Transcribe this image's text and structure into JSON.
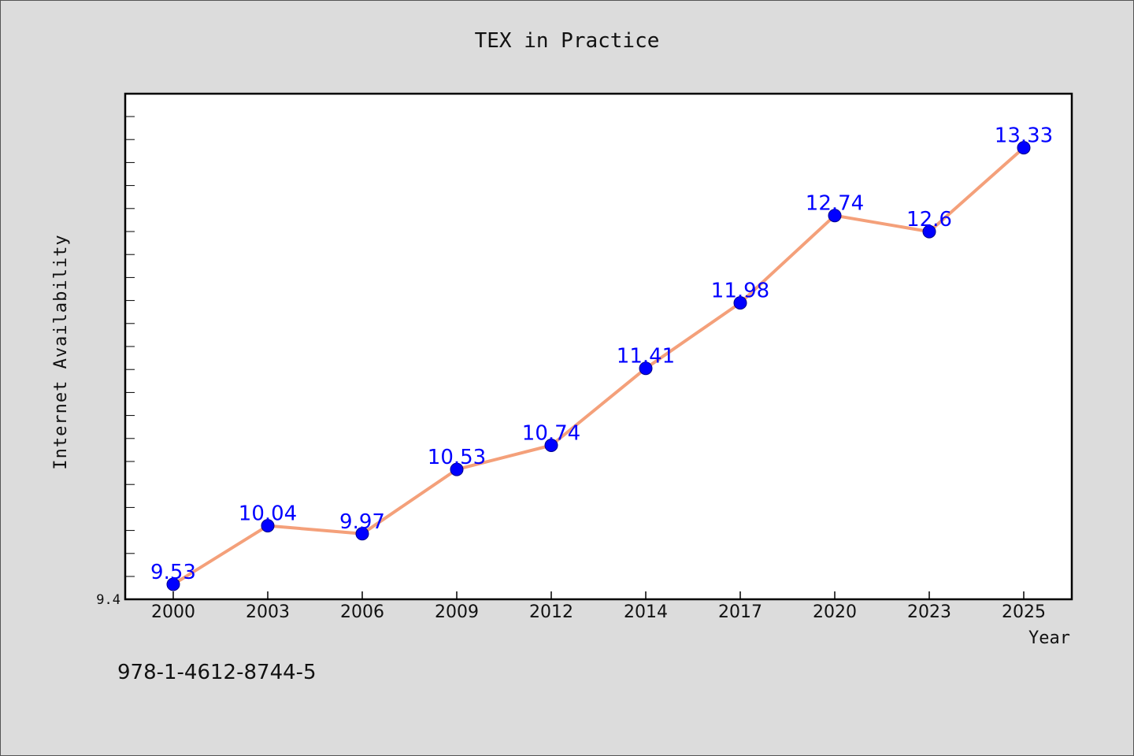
{
  "chart_data": {
    "type": "line",
    "title": "TEX in Practice",
    "xlabel": "Year",
    "ylabel": "Internet Availability",
    "categories": [
      "2000",
      "2003",
      "2006",
      "2009",
      "2012",
      "2014",
      "2017",
      "2020",
      "2023",
      "2025"
    ],
    "series": [
      {
        "values": [
          9.53,
          10.04,
          9.97,
          10.53,
          10.74,
          11.41,
          11.98,
          12.74,
          12.6,
          13.33
        ],
        "labels": [
          "9.53",
          "10.04",
          "9.97",
          "10.53",
          "10.74",
          "11.41",
          "11.98",
          "12.74",
          "12.6",
          "13.33"
        ]
      }
    ],
    "y_min_label": "9.4",
    "ylim": [
      9.4,
      13.8
    ],
    "grid": false,
    "legend": "none",
    "colors": {
      "line": "#f4a07a",
      "marker": "#0000ff",
      "data_label": "#0000ff",
      "background": "#dcdcdc",
      "plot_background": "#ffffff"
    }
  },
  "footer": {
    "isbn": "978-1-4612-8744-5"
  }
}
